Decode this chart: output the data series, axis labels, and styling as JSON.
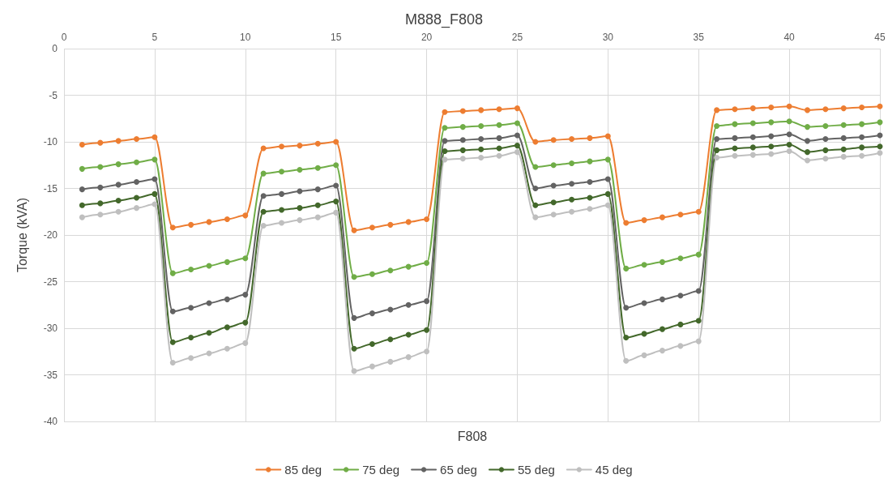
{
  "chart_data": {
    "type": "line",
    "title": "M888_F808",
    "xlabel": "F808",
    "ylabel": "Torque (kVA)",
    "x": [
      1,
      2,
      3,
      4,
      5,
      6,
      7,
      8,
      9,
      10,
      11,
      12,
      13,
      14,
      15,
      16,
      17,
      18,
      19,
      20,
      21,
      22,
      23,
      24,
      25,
      26,
      27,
      28,
      29,
      30,
      31,
      32,
      33,
      34,
      35,
      36,
      37,
      38,
      39,
      40,
      41,
      42,
      43,
      44,
      45
    ],
    "xlim": [
      0,
      45
    ],
    "xticks": [
      0,
      5,
      10,
      15,
      20,
      25,
      30,
      35,
      40,
      45
    ],
    "ylim": [
      -40,
      0
    ],
    "yticks": [
      -40,
      -35,
      -30,
      -25,
      -20,
      -15,
      -10,
      -5,
      0
    ],
    "grid": true,
    "legend": "bottom",
    "marker": "circle",
    "line_style": "solid",
    "series": [
      {
        "name": "85 deg",
        "color": "#ed7d31",
        "values": [
          -10.3,
          -10.1,
          -9.9,
          -9.7,
          -9.5,
          -19.2,
          -18.9,
          -18.6,
          -18.3,
          -17.9,
          -10.7,
          -10.5,
          -10.4,
          -10.2,
          -10.0,
          -19.5,
          -19.2,
          -18.9,
          -18.6,
          -18.3,
          -6.8,
          -6.7,
          -6.6,
          -6.5,
          -6.4,
          -10.0,
          -9.8,
          -9.7,
          -9.6,
          -9.4,
          -18.7,
          -18.4,
          -18.1,
          -17.8,
          -17.5,
          -6.6,
          -6.5,
          -6.4,
          -6.3,
          -6.2,
          -6.6,
          -6.5,
          -6.4,
          -6.3,
          -6.2
        ]
      },
      {
        "name": "75 deg",
        "color": "#70ad47",
        "values": [
          -12.9,
          -12.7,
          -12.4,
          -12.2,
          -11.9,
          -24.1,
          -23.7,
          -23.3,
          -22.9,
          -22.5,
          -13.4,
          -13.2,
          -13.0,
          -12.8,
          -12.5,
          -24.5,
          -24.2,
          -23.8,
          -23.4,
          -23.0,
          -8.5,
          -8.4,
          -8.3,
          -8.2,
          -8.0,
          -12.7,
          -12.5,
          -12.3,
          -12.1,
          -11.9,
          -23.6,
          -23.2,
          -22.9,
          -22.5,
          -22.1,
          -8.3,
          -8.1,
          -8.0,
          -7.9,
          -7.8,
          -8.4,
          -8.3,
          -8.2,
          -8.1,
          -7.9
        ]
      },
      {
        "name": "65 deg",
        "color": "#636363",
        "values": [
          -15.1,
          -14.9,
          -14.6,
          -14.3,
          -14.0,
          -28.2,
          -27.8,
          -27.3,
          -26.9,
          -26.4,
          -15.8,
          -15.6,
          -15.3,
          -15.1,
          -14.7,
          -28.9,
          -28.4,
          -28.0,
          -27.5,
          -27.1,
          -9.9,
          -9.8,
          -9.7,
          -9.6,
          -9.3,
          -15.0,
          -14.7,
          -14.5,
          -14.3,
          -14.0,
          -27.8,
          -27.3,
          -26.9,
          -26.5,
          -26.0,
          -9.7,
          -9.6,
          -9.5,
          -9.4,
          -9.2,
          -9.9,
          -9.7,
          -9.6,
          -9.5,
          -9.3
        ]
      },
      {
        "name": "55 deg",
        "color": "#43682b",
        "values": [
          -16.8,
          -16.6,
          -16.3,
          -16.0,
          -15.6,
          -31.5,
          -31.0,
          -30.5,
          -29.9,
          -29.4,
          -17.5,
          -17.3,
          -17.1,
          -16.8,
          -16.4,
          -32.2,
          -31.7,
          -31.2,
          -30.7,
          -30.2,
          -11.0,
          -10.9,
          -10.8,
          -10.7,
          -10.4,
          -16.8,
          -16.5,
          -16.2,
          -16.0,
          -15.6,
          -31.0,
          -30.6,
          -30.1,
          -29.6,
          -29.2,
          -10.9,
          -10.7,
          -10.6,
          -10.5,
          -10.3,
          -11.1,
          -10.9,
          -10.8,
          -10.6,
          -10.5
        ]
      },
      {
        "name": "45 deg",
        "color": "#bfbfbf",
        "values": [
          -18.1,
          -17.8,
          -17.5,
          -17.1,
          -16.7,
          -33.7,
          -33.2,
          -32.7,
          -32.2,
          -31.6,
          -19.0,
          -18.7,
          -18.4,
          -18.1,
          -17.6,
          -34.6,
          -34.1,
          -33.6,
          -33.1,
          -32.5,
          -11.9,
          -11.8,
          -11.7,
          -11.5,
          -11.1,
          -18.1,
          -17.8,
          -17.5,
          -17.2,
          -16.8,
          -33.5,
          -32.9,
          -32.4,
          -31.9,
          -31.4,
          -11.7,
          -11.5,
          -11.4,
          -11.3,
          -11.0,
          -12.0,
          -11.8,
          -11.6,
          -11.5,
          -11.2
        ]
      }
    ]
  }
}
